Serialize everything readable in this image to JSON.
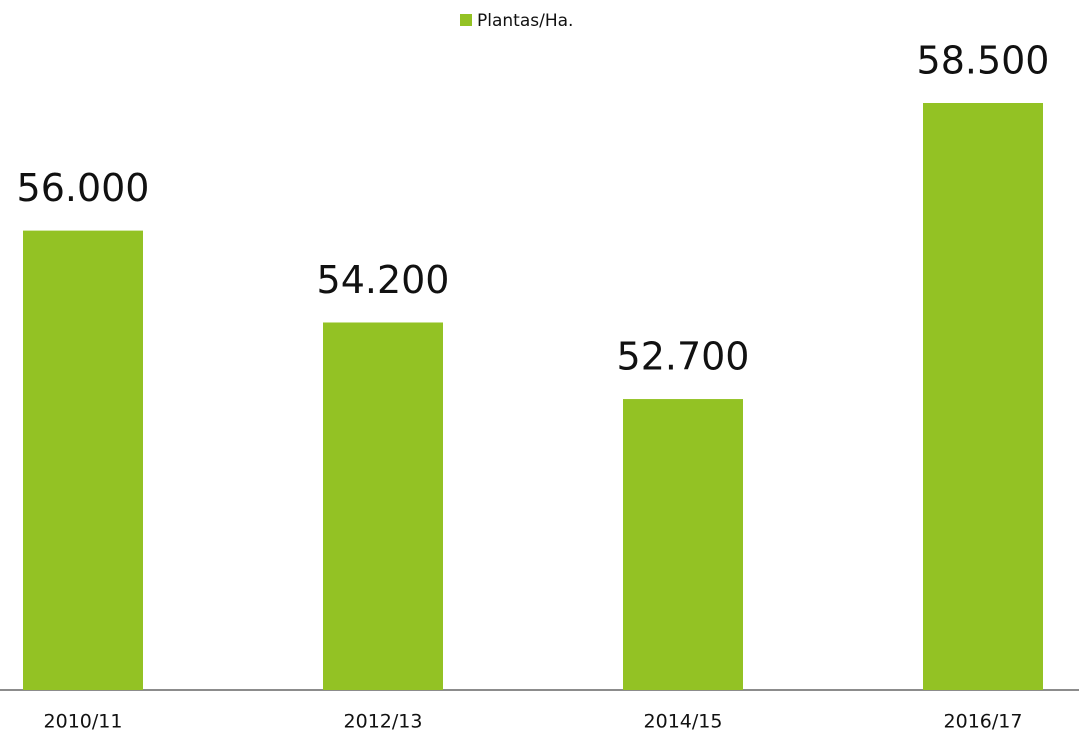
{
  "chart_data": {
    "type": "bar",
    "series": [
      {
        "name": "Plantas/Ha.",
        "color": "#93c224",
        "values": [
          56000,
          54200,
          52700,
          58500
        ],
        "value_labels": [
          "56.000",
          "54.200",
          "52.700",
          "58.500"
        ]
      }
    ],
    "categories": [
      "2010/11",
      "2012/13",
      "2014/15",
      "2016/17"
    ],
    "ylim": [
      47000,
      58500
    ]
  }
}
